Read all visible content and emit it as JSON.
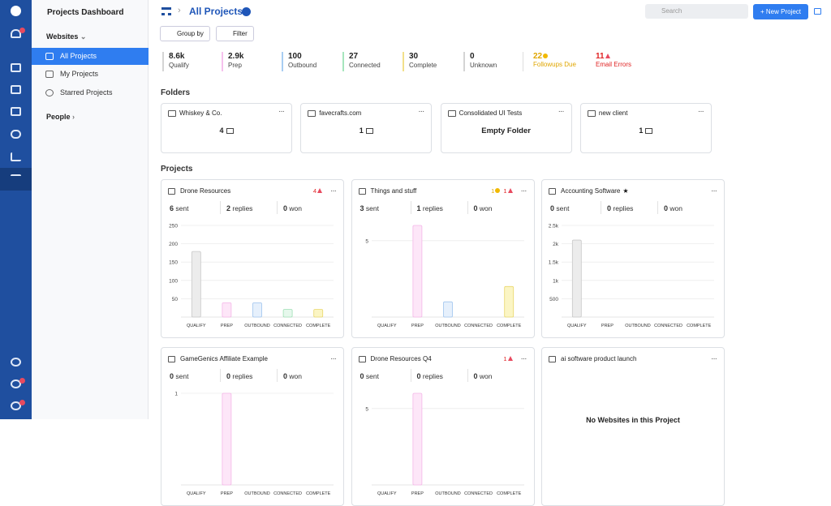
{
  "sidebar": {
    "title": "Projects Dashboard",
    "websites": {
      "label": "Websites",
      "items": [
        "All Projects",
        "My Projects",
        "Starred Projects"
      ]
    },
    "people": "People"
  },
  "header": {
    "title": "All Projects",
    "search_placeholder": "Search",
    "new_project": "+ New Project"
  },
  "toolbar": [
    "Group by",
    "Filter"
  ],
  "stats": [
    {
      "value": "8.6k",
      "label": "Qualify"
    },
    {
      "value": "2.9k",
      "label": "Prep"
    },
    {
      "value": "100",
      "label": "Outbound"
    },
    {
      "value": "27",
      "label": "Connected"
    },
    {
      "value": "30",
      "label": "Complete"
    },
    {
      "value": "0",
      "label": "Unknown"
    },
    {
      "value": "22",
      "label": "Followups Due"
    },
    {
      "value": "11",
      "label": "Email Errors"
    }
  ],
  "folders": {
    "heading": "Folders",
    "items": [
      {
        "name": "Whiskey & Co.",
        "count": 4
      },
      {
        "name": "favecrafts.com",
        "count": 1
      },
      {
        "name": "Consolidated UI Tests",
        "empty": "Empty Folder"
      },
      {
        "name": "new client",
        "count": 1
      }
    ]
  },
  "projects": {
    "heading": "Projects",
    "metric_labels": [
      "sent",
      "replies",
      "won"
    ],
    "items": [
      {
        "name": "Drone Resources",
        "errors": 4,
        "sent": 6,
        "replies": 2,
        "won": 0,
        "chart": {
          "categories": [
            "QUALIFY",
            "PREP",
            "OUTBOUND",
            "CONNECTED",
            "COMPLETE"
          ],
          "values": [
            179,
            39,
            39,
            21,
            21
          ],
          "ylim": [
            0,
            250
          ],
          "yticks": [
            50,
            100,
            150,
            200,
            250
          ]
        }
      },
      {
        "name": "Things and stuff",
        "followups": 1,
        "errors": 1,
        "sent": 3,
        "replies": 1,
        "won": 0,
        "chart": {
          "categories": [
            "QUALIFY",
            "PREP",
            "OUTBOUND",
            "CONNECTED",
            "COMPLETE"
          ],
          "values": [
            0,
            6,
            1,
            0,
            2
          ],
          "ylim": [
            0,
            6
          ],
          "yticks": [
            5
          ]
        }
      },
      {
        "name": "Accounting Software",
        "starred": true,
        "sent": 0,
        "replies": 0,
        "won": 0,
        "chart": {
          "categories": [
            "QUALIFY",
            "PREP",
            "OUTBOUND",
            "CONNECTED",
            "COMPLETE"
          ],
          "values": [
            2100,
            0,
            0,
            0,
            0
          ],
          "ylim": [
            0,
            2500
          ],
          "yticks": [
            {
              "value": 500,
              "label": "500"
            },
            {
              "value": 1000,
              "label": "1k"
            },
            {
              "value": 1500,
              "label": "1.5k"
            },
            {
              "value": 2000,
              "label": "2k"
            },
            {
              "value": 2500,
              "label": "2.5k"
            }
          ]
        }
      },
      {
        "name": "GameGenics Affiliate Example",
        "sent": 0,
        "replies": 0,
        "won": 0,
        "chart": {
          "categories": [
            "QUALIFY",
            "PREP",
            "OUTBOUND",
            "CONNECTED",
            "COMPLETE"
          ],
          "values": [
            0,
            1,
            0,
            0,
            0
          ],
          "ylim": [
            0,
            1
          ],
          "yticks": [
            1
          ]
        }
      },
      {
        "name": "Drone Resources Q4",
        "errors": 1,
        "sent": 0,
        "replies": 0,
        "won": 0,
        "chart": {
          "categories": [
            "QUALIFY",
            "PREP",
            "OUTBOUND",
            "CONNECTED",
            "COMPLETE"
          ],
          "values": [
            0,
            6,
            0,
            0,
            0
          ],
          "ylim": [
            0,
            6
          ],
          "yticks": [
            5
          ]
        }
      },
      {
        "name": "ai software product launch",
        "empty": "No Websites in this Project"
      }
    ]
  }
}
